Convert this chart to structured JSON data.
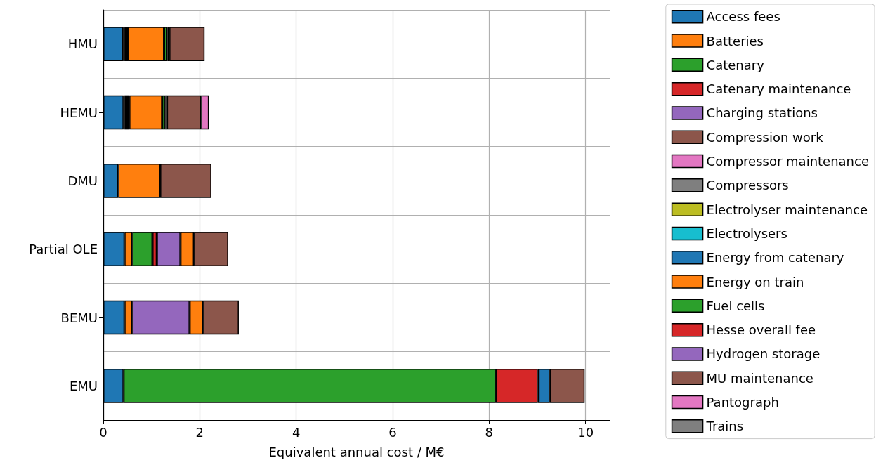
{
  "chart_data": {
    "type": "bar",
    "orientation": "horizontal",
    "stacked": true,
    "xlabel": "Equivalent annual cost / M€",
    "categories": [
      "HMU",
      "HEMU",
      "DMU",
      "Partial OLE",
      "BEMU",
      "EMU"
    ],
    "xlim": [
      0,
      10.5
    ],
    "xticks": [
      0,
      2,
      4,
      6,
      8,
      10
    ],
    "grid": true,
    "legend": "right",
    "series": [
      {
        "name": "Access fees",
        "color": "#1f77b4",
        "values": [
          0.41,
          0.42,
          0.31,
          0.44,
          0.44,
          0.42
        ]
      },
      {
        "name": "Batteries",
        "color": "#ff7f0e",
        "values": [
          null,
          0.02,
          null,
          0.16,
          0.16,
          null
        ]
      },
      {
        "name": "Catenary",
        "color": "#2ca02c",
        "values": [
          null,
          null,
          null,
          0.42,
          null,
          7.72
        ]
      },
      {
        "name": "Catenary maintenance",
        "color": "#d62728",
        "values": [
          null,
          null,
          null,
          0.09,
          null,
          0.87
        ]
      },
      {
        "name": "Charging stations",
        "color": "#9467bd",
        "values": [
          null,
          null,
          null,
          0.49,
          1.19,
          null
        ]
      },
      {
        "name": "Compression work",
        "color": "#8c564b",
        "values": [
          0.04,
          0.04,
          null,
          null,
          null,
          null
        ]
      },
      {
        "name": "Compressor maintenance",
        "color": "#e377c2",
        "values": [
          null,
          null,
          null,
          null,
          null,
          null
        ]
      },
      {
        "name": "Compressors",
        "color": "#7f7f7f",
        "values": [
          0.03,
          0.03,
          null,
          null,
          null,
          null
        ]
      },
      {
        "name": "Electrolyser maintenance",
        "color": "#bcbd22",
        "values": [
          null,
          null,
          null,
          null,
          null,
          null
        ]
      },
      {
        "name": "Electrolysers",
        "color": "#17becf",
        "values": [
          0.03,
          0.03,
          null,
          null,
          null,
          null
        ]
      },
      {
        "name": "Energy from catenary",
        "color": "#1f77b4",
        "values": [
          null,
          null,
          null,
          null,
          null,
          0.25
        ]
      },
      {
        "name": "Energy on train",
        "color": "#ff7f0e",
        "values": [
          0.75,
          0.68,
          0.87,
          0.28,
          0.28,
          null
        ]
      },
      {
        "name": "Fuel cells",
        "color": "#2ca02c",
        "values": [
          0.07,
          0.07,
          null,
          null,
          null,
          null
        ]
      },
      {
        "name": "Hesse overall fee",
        "color": "#d62728",
        "values": [
          null,
          null,
          null,
          null,
          null,
          null
        ]
      },
      {
        "name": "Hydrogen storage",
        "color": "#9467bd",
        "values": [
          0.04,
          0.03,
          null,
          null,
          null,
          null
        ]
      },
      {
        "name": "MU maintenance",
        "color": "#8c564b",
        "values": [
          0.73,
          0.71,
          1.06,
          0.71,
          0.74,
          0.72
        ]
      },
      {
        "name": "Pantograph",
        "color": "#e377c2",
        "values": [
          null,
          0.16,
          null,
          null,
          null,
          null
        ]
      },
      {
        "name": "Trains",
        "color": "#7f7f7f",
        "values": [
          null,
          null,
          null,
          null,
          null,
          null
        ]
      }
    ]
  }
}
